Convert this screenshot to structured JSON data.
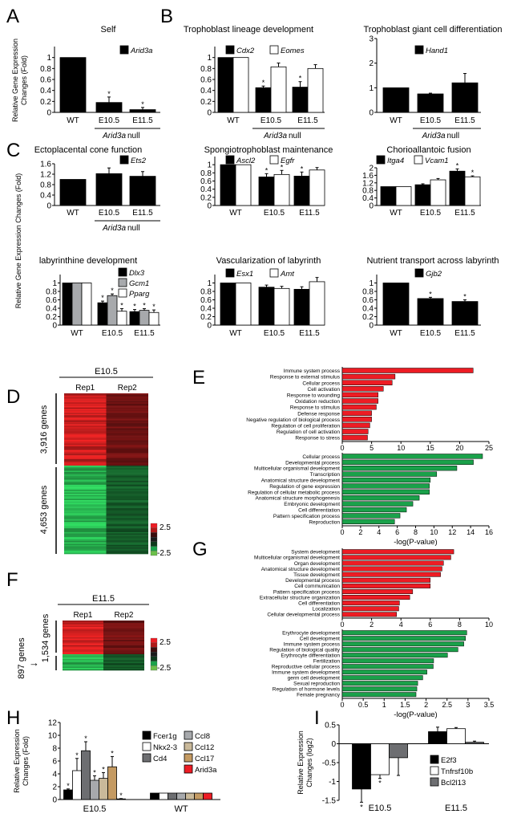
{
  "panel_labels": [
    "A",
    "B",
    "C",
    "D",
    "E",
    "F",
    "G",
    "H",
    "I"
  ],
  "chart_data": [
    {
      "id": "A-self",
      "type": "bar",
      "title": "Self",
      "ylabel": [
        "Relative Gene Expression",
        "Changes (Fold)"
      ],
      "categories": [
        "WT",
        "E10.5",
        "E11.5"
      ],
      "group_label_gene": "Arid3a",
      "group_label_suffix": "null",
      "ylim": [
        0,
        1.2
      ],
      "yticks": [
        0,
        0.2,
        0.4,
        0.6,
        0.8,
        1
      ],
      "series": [
        {
          "name": "Arid3a",
          "color": "#000000",
          "values": [
            1,
            0.18,
            0.05
          ],
          "errors": [
            0,
            0.1,
            0.04
          ],
          "sig": [
            false,
            true,
            true
          ]
        }
      ]
    },
    {
      "id": "B-trophoblast-lineage",
      "type": "bar",
      "title": "Trophoblast lineage development",
      "categories": [
        "WT",
        "E10.5",
        "E11.5"
      ],
      "group_label_gene": "Arid3a",
      "group_label_suffix": "null",
      "ylim": [
        0,
        1.2
      ],
      "yticks": [
        0,
        0.2,
        0.4,
        0.6,
        0.8,
        1
      ],
      "series": [
        {
          "name": "Cdx2",
          "color": "#000000",
          "values": [
            1,
            0.45,
            0.46
          ],
          "errors": [
            0,
            0.03,
            0.1
          ],
          "sig": [
            false,
            true,
            true
          ]
        },
        {
          "name": "Eomes",
          "color": "#ffffff",
          "values": [
            1,
            0.83,
            0.8
          ],
          "errors": [
            0,
            0.07,
            0.07
          ],
          "sig": [
            false,
            false,
            false
          ]
        }
      ]
    },
    {
      "id": "B-giant-cell",
      "type": "bar",
      "title": "Trophoblast giant cell differentiation",
      "categories": [
        "WT",
        "E10.5",
        "E11.5"
      ],
      "group_label_gene": "Arid3a",
      "group_label_suffix": "null",
      "ylim": [
        0,
        3
      ],
      "yticks": [
        0,
        1,
        2,
        3
      ],
      "series": [
        {
          "name": "Hand1",
          "color": "#000000",
          "values": [
            1,
            0.75,
            1.2
          ],
          "errors": [
            0,
            0.03,
            0.38
          ],
          "sig": [
            false,
            false,
            false
          ]
        }
      ]
    },
    {
      "id": "C-ectoplacental",
      "type": "bar",
      "title": "Ectoplacental cone function",
      "categories": [
        "WT",
        "E10.5",
        "E11.5"
      ],
      "group_label_gene": "Arid3a",
      "group_label_suffix": "null",
      "ylim": [
        0,
        1.6
      ],
      "yticks": [
        0,
        0.4,
        0.8,
        1.2,
        1.6
      ],
      "series": [
        {
          "name": "Ets2",
          "color": "#000000",
          "values": [
            1,
            1.22,
            1.12
          ],
          "errors": [
            0,
            0.22,
            0.18
          ],
          "sig": [
            false,
            false,
            false
          ]
        }
      ]
    },
    {
      "id": "C-spongiotrophoblast",
      "type": "bar",
      "title": "Spongiotrophoblast maintenance",
      "categories": [
        "WT",
        "E10.5",
        "E11.5"
      ],
      "ylim": [
        0,
        1.2
      ],
      "yticks": [
        0,
        0.2,
        0.4,
        0.6,
        0.8,
        1
      ],
      "series": [
        {
          "name": "Ascl2",
          "color": "#000000",
          "values": [
            1,
            0.7,
            0.72
          ],
          "errors": [
            0,
            0.08,
            0.1
          ],
          "sig": [
            false,
            true,
            true
          ]
        },
        {
          "name": "Egfr",
          "color": "#ffffff",
          "values": [
            1,
            0.76,
            0.87
          ],
          "errors": [
            0,
            0.1,
            0.06
          ],
          "sig": [
            false,
            true,
            false
          ]
        }
      ]
    },
    {
      "id": "C-chorioallantoic",
      "type": "bar",
      "title": "Chorioallantoic fusion",
      "categories": [
        "WT",
        "E10.5",
        "E11.5"
      ],
      "ylim": [
        0,
        2
      ],
      "yticks": [
        0,
        0.4,
        0.8,
        1.2,
        1.6,
        2
      ],
      "series": [
        {
          "name": "Itga4",
          "color": "#000000",
          "values": [
            1,
            1.1,
            1.82
          ],
          "errors": [
            0,
            0.05,
            0.12
          ],
          "sig": [
            false,
            false,
            true
          ]
        },
        {
          "name": "Vcam1",
          "color": "#ffffff",
          "values": [
            1,
            1.36,
            1.52
          ],
          "errors": [
            0,
            0.07,
            0.05
          ],
          "sig": [
            false,
            false,
            true
          ]
        }
      ]
    },
    {
      "id": "C-labyrinthine",
      "type": "bar",
      "title": "labyrinthine development",
      "ylabel": [
        "Relative Gene Expression Changes (Fold)"
      ],
      "categories": [
        "WT",
        "E10.5",
        "E11.5"
      ],
      "ylim": [
        0,
        1.2
      ],
      "yticks": [
        0,
        0.2,
        0.4,
        0.6,
        0.8,
        1
      ],
      "series": [
        {
          "name": "Dlx3",
          "color": "#000000",
          "values": [
            1,
            0.53,
            0.32
          ],
          "errors": [
            0,
            0.04,
            0.05
          ],
          "sig": [
            false,
            true,
            true
          ]
        },
        {
          "name": "Gcm1",
          "color": "#a7a9ac",
          "values": [
            1,
            0.7,
            0.35
          ],
          "errors": [
            0,
            0.04,
            0.04
          ],
          "sig": [
            false,
            true,
            true
          ]
        },
        {
          "name": "Pparg",
          "color": "#ffffff",
          "values": [
            1,
            0.33,
            0.3
          ],
          "errors": [
            0,
            0.06,
            0.06
          ],
          "sig": [
            false,
            true,
            true
          ]
        }
      ]
    },
    {
      "id": "C-vascularization",
      "type": "bar",
      "title": "Vascularization of labyrinth",
      "categories": [
        "WT",
        "E10.5",
        "E11.5"
      ],
      "ylim": [
        0,
        1.2
      ],
      "yticks": [
        0,
        0.2,
        0.4,
        0.6,
        0.8,
        1
      ],
      "series": [
        {
          "name": "Esx1",
          "color": "#000000",
          "values": [
            1,
            0.9,
            0.85
          ],
          "errors": [
            0,
            0.05,
            0.06
          ],
          "sig": [
            false,
            false,
            false
          ]
        },
        {
          "name": "Amt",
          "color": "#ffffff",
          "values": [
            1,
            0.87,
            1.03
          ],
          "errors": [
            0,
            0.05,
            0.1
          ],
          "sig": [
            false,
            false,
            false
          ]
        }
      ]
    },
    {
      "id": "C-nutrient",
      "type": "bar",
      "title": "Nutrient transport across labyrinth",
      "categories": [
        "WT",
        "E10.5",
        "E11.5"
      ],
      "ylim": [
        0,
        1.2
      ],
      "yticks": [
        0,
        0.2,
        0.4,
        0.6,
        0.8,
        1
      ],
      "series": [
        {
          "name": "Gjb2",
          "color": "#000000",
          "values": [
            1,
            0.63,
            0.56
          ],
          "errors": [
            0,
            0.03,
            0.04
          ],
          "sig": [
            false,
            true,
            true
          ]
        }
      ]
    },
    {
      "id": "E-up",
      "type": "bar-horizontal",
      "color": "#ed1c24",
      "xlim": [
        0,
        25
      ],
      "xticks": [
        0,
        5,
        10,
        15,
        20,
        25
      ],
      "terms": [
        "Immune system process",
        "Response to external stimulus",
        "Cellular process",
        "Cell activation",
        "Response to wounding",
        "Oxidation reduction",
        "Response to stimulus",
        "Defense response",
        "Negative regulation of biological process",
        "Regulation of cell proliferation",
        "Regulation of cell activation",
        "Response to stress"
      ],
      "values": [
        22.3,
        9,
        8.5,
        7,
        6.1,
        6.1,
        5.8,
        5,
        5,
        4.7,
        4.4,
        4.3
      ]
    },
    {
      "id": "E-down",
      "type": "bar-horizontal",
      "color": "#1aa14a",
      "xlim": [
        0,
        16
      ],
      "xticks": [
        0,
        2,
        4,
        6,
        8,
        10,
        12,
        14,
        16
      ],
      "xlabel": "-log(P-value)",
      "terms": [
        "Cellular process",
        "Developmental process",
        "Multicellular organismal development",
        "Transcription",
        "Anatomical structure development",
        "Regulation of gene expression",
        "Regulation of cellular metabolic process",
        "Anatomical structure morphogenesis",
        "Embryonic development",
        "Cell differentiation",
        "Pattern specification process",
        "Reproduction"
      ],
      "values": [
        15.3,
        14.3,
        12.5,
        10.3,
        9.6,
        9.5,
        9.5,
        8.4,
        7.7,
        7.0,
        6.3,
        5.7
      ]
    },
    {
      "id": "G-up",
      "type": "bar-horizontal",
      "color": "#ed1c24",
      "xlim": [
        0,
        10
      ],
      "xticks": [
        0,
        2,
        4,
        6,
        8,
        10
      ],
      "terms": [
        "System development",
        "Multicellular organismal development",
        "Organ development",
        "Anatomical structure development",
        "Tissue development",
        "Developmental process",
        "Cell communication",
        "Pattern specification process",
        "Extracellular structure organization",
        "Cell differentiation",
        "Localization",
        "Cellular developmental process"
      ],
      "values": [
        7.6,
        7.4,
        6.9,
        6.8,
        6.7,
        6.0,
        6.0,
        4.8,
        4.6,
        3.9,
        3.85,
        3.7
      ]
    },
    {
      "id": "G-down",
      "type": "bar-horizontal",
      "color": "#1aa14a",
      "xlim": [
        0,
        3.5
      ],
      "xticks": [
        0,
        0.5,
        1,
        1.5,
        2,
        2.5,
        3,
        3.5
      ],
      "xlabel": "-log(P-value)",
      "terms": [
        "Erythrocyte development",
        "Cell development",
        "Immune system process",
        "Regulation of biological quality",
        "Erythrocyte differentiation",
        "Fertilization",
        "Reproductive cellular process",
        "Immune system development",
        "germ cell development",
        "Sexual reproduction",
        "Regulation of hormone levels",
        "Female pregnancy"
      ],
      "values": [
        2.97,
        2.94,
        2.9,
        2.76,
        2.51,
        2.18,
        2.17,
        2.02,
        1.92,
        1.8,
        1.78,
        1.76
      ]
    },
    {
      "id": "H-expression",
      "type": "bar",
      "ylabel": [
        "Relative Expression",
        "Changes (Fold)"
      ],
      "categories": [
        "E10.5",
        "WT"
      ],
      "ylim": [
        0,
        12
      ],
      "yticks": [
        0,
        2,
        4,
        6,
        8,
        10,
        12
      ],
      "series": [
        {
          "name": "Fcer1g",
          "color": "#000000",
          "values": [
            1.5,
            1
          ],
          "errors": [
            0.15,
            0
          ],
          "sig": [
            true,
            false
          ]
        },
        {
          "name": "Nkx2-3",
          "color": "#ffffff",
          "values": [
            4.5,
            1
          ],
          "errors": [
            1.9,
            0
          ],
          "sig": [
            true,
            false
          ]
        },
        {
          "name": "Cd4",
          "color": "#6d6e71",
          "values": [
            7.6,
            1
          ],
          "errors": [
            1.4,
            0
          ],
          "sig": [
            true,
            false
          ]
        },
        {
          "name": "Ccl8",
          "color": "#a7a9ac",
          "values": [
            3.0,
            1
          ],
          "errors": [
            0.7,
            0
          ],
          "sig": [
            true,
            false
          ]
        },
        {
          "name": "Ccl12",
          "color": "#c9b99a",
          "values": [
            3.3,
            1
          ],
          "errors": [
            0.9,
            0
          ],
          "sig": [
            true,
            false
          ]
        },
        {
          "name": "Ccl17",
          "color": "#c49a62",
          "values": [
            5.1,
            1
          ],
          "errors": [
            1.6,
            0
          ],
          "sig": [
            true,
            false
          ]
        },
        {
          "name": "Arid3a",
          "color": "#ed1c24",
          "values": [
            0.1,
            1
          ],
          "errors": [
            0.05,
            0
          ],
          "sig": [
            true,
            false
          ]
        }
      ]
    },
    {
      "id": "I-expression",
      "type": "bar",
      "ylabel": [
        "Relative Expression",
        "Changes (log2)"
      ],
      "categories": [
        "E10.5",
        "E11.5"
      ],
      "ylim": [
        -1.5,
        0.5
      ],
      "yticks": [
        0.5,
        0,
        -0.5,
        -1,
        -1.5
      ],
      "series": [
        {
          "name": "E2f3",
          "color": "#000000",
          "values": [
            -1.2,
            0.32
          ],
          "errors": [
            0.35,
            0.12
          ],
          "sig": [
            true,
            false
          ]
        },
        {
          "name": "Tnfrsf10b",
          "color": "#ffffff",
          "values": [
            -0.82,
            0.4
          ],
          "errors": [
            0.1,
            0.03
          ],
          "sig": [
            true,
            false
          ]
        },
        {
          "name": "Bcl2l13",
          "color": "#6d6e71",
          "values": [
            -0.37,
            0.04
          ],
          "errors": [
            0.47,
            0.03
          ],
          "sig": [
            false,
            false
          ]
        }
      ]
    },
    {
      "id": "D-heatmap",
      "type": "heatmap",
      "stage": "E10.5",
      "columns": [
        "Rep1",
        "Rep2"
      ],
      "clusters": [
        {
          "label": "3,916 genes",
          "direction": "up"
        },
        {
          "label": "4,653 genes",
          "direction": "down"
        }
      ],
      "colorbar": {
        "max": "2.5",
        "min": "-2.5"
      }
    },
    {
      "id": "F-heatmap",
      "type": "heatmap",
      "stage": "E11.5",
      "columns": [
        "Rep1",
        "Rep2"
      ],
      "clusters": [
        {
          "label": "1,534 genes",
          "direction": "up"
        },
        {
          "label": "897 genes",
          "direction": "down"
        }
      ],
      "colorbar": {
        "max": "2.5",
        "min": "-2.5"
      }
    }
  ]
}
